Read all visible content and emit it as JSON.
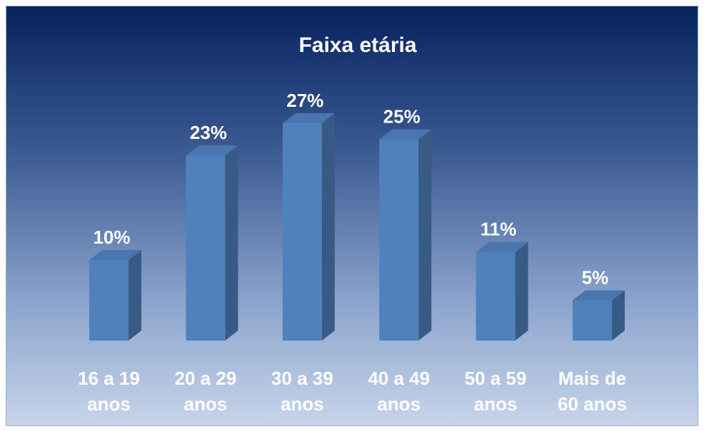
{
  "chart_data": {
    "type": "bar3d",
    "title": "Faixa etária",
    "categories": [
      "16 a 19 anos",
      "20 a 29 anos",
      "30 a 39 anos",
      "40 a 49 anos",
      "50 a 59 anos",
      "Mais de 60 anos"
    ],
    "values": [
      10,
      23,
      27,
      25,
      11,
      5
    ],
    "value_labels": [
      "10%",
      "23%",
      "27%",
      "25%",
      "11%",
      "5%"
    ],
    "color": "#4f81bd"
  }
}
